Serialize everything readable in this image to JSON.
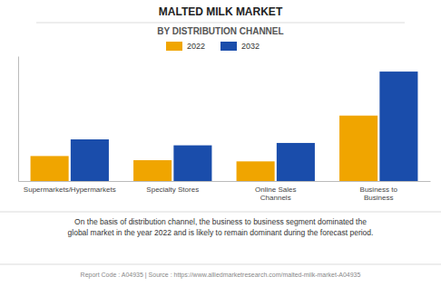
{
  "chart_data": {
    "type": "bar",
    "title": "MALTED MILK MARKET",
    "subtitle": "BY DISTRIBUTION CHANNEL",
    "categories": [
      "Supermarkets/Hypermarkets",
      "Specialty Stores",
      "Online Sales\nChannels",
      "Business to\nBusiness"
    ],
    "series": [
      {
        "name": "2022",
        "color": "#F0A500",
        "values": [
          2.1,
          1.75,
          1.65,
          5.5
        ]
      },
      {
        "name": "2032",
        "color": "#1A4DAB",
        "values": [
          3.5,
          3.0,
          3.2,
          9.2
        ]
      }
    ],
    "ylim": [
      0,
      10.5
    ],
    "yticks": [],
    "grid": false,
    "tick_labels": "x",
    "legend": "top",
    "annotations": [
      "On the basis of distribution channel, the business to business segment dominated the\nglobal market in the year 2022 and is likely to remain dominant during the forecast period.",
      "Report Code : A04935  |  Source : https://www.alliedmarketresearch.com/malted-milk-market-A04935"
    ]
  }
}
